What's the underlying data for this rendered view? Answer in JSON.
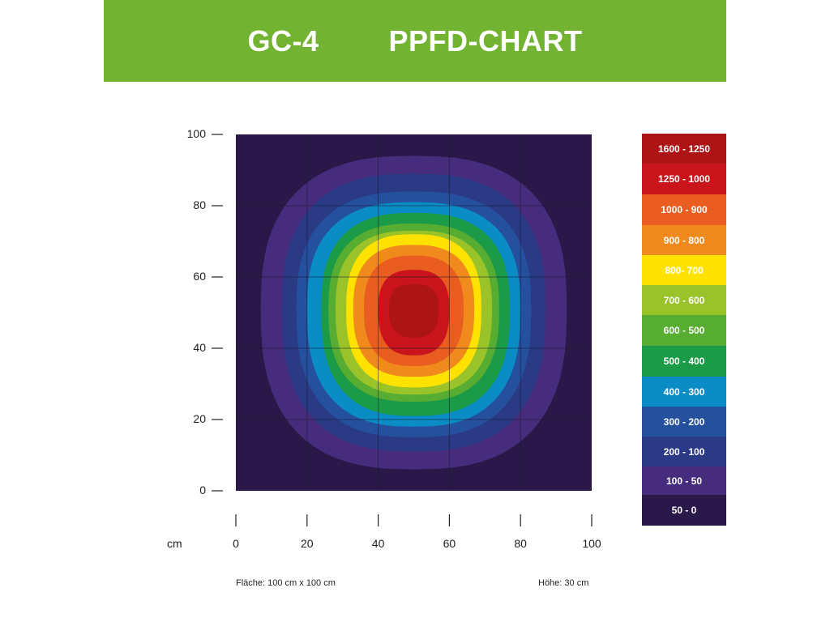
{
  "header": {
    "model": "GC-4",
    "title": "PPFD-CHART",
    "background": "#72b432"
  },
  "chart_data": {
    "type": "heatmap",
    "title": "PPFD-CHART",
    "xlabel": "cm",
    "ylabel": "",
    "xlim": [
      0,
      100
    ],
    "ylim": [
      0,
      100
    ],
    "x_ticks": [
      0,
      20,
      40,
      60,
      80,
      100
    ],
    "y_ticks": [
      0,
      20,
      40,
      60,
      80,
      100
    ],
    "grid": true,
    "center": [
      50,
      51
    ],
    "contours": [
      {
        "range": "100 - 50",
        "color": "#472c7d",
        "extent": {
          "left": 7,
          "right": 93,
          "top": 94,
          "bottom": 6
        }
      },
      {
        "range": "200 - 100",
        "color": "#2a3a85",
        "extent": {
          "left": 13,
          "right": 87,
          "top": 89,
          "bottom": 11
        }
      },
      {
        "range": "300 - 200",
        "color": "#24509e",
        "extent": {
          "left": 17,
          "right": 83,
          "top": 84,
          "bottom": 15
        }
      },
      {
        "range": "400 - 300",
        "color": "#0a8dc4",
        "extent": {
          "left": 20,
          "right": 80,
          "top": 81,
          "bottom": 18
        }
      },
      {
        "range": "500 - 400",
        "color": "#1b9a48",
        "extent": {
          "left": 24,
          "right": 77,
          "top": 78,
          "bottom": 21
        }
      },
      {
        "range": "600 - 500",
        "color": "#56ad32",
        "extent": {
          "left": 26,
          "right": 74,
          "top": 75,
          "bottom": 25
        }
      },
      {
        "range": "700 - 600",
        "color": "#9ac329",
        "extent": {
          "left": 28,
          "right": 72,
          "top": 73,
          "bottom": 27
        }
      },
      {
        "range": "800- 700",
        "color": "#ffe200",
        "extent": {
          "left": 31,
          "right": 69,
          "top": 72,
          "bottom": 29
        }
      },
      {
        "range": "900 - 800",
        "color": "#f08a1c",
        "extent": {
          "left": 33,
          "right": 67,
          "top": 69,
          "bottom": 32
        }
      },
      {
        "range": "1000 - 900",
        "color": "#e95d20",
        "extent": {
          "left": 36,
          "right": 64,
          "top": 66,
          "bottom": 35
        }
      },
      {
        "range": "1250 - 1000",
        "color": "#c9141c",
        "extent": {
          "left": 40,
          "right": 60,
          "top": 62,
          "bottom": 38
        }
      },
      {
        "range": "1600 - 1250",
        "color": "#ad1416",
        "extent": {
          "left": 43,
          "right": 57,
          "top": 58,
          "bottom": 43
        }
      }
    ],
    "background_range": "50 - 0",
    "background_color": "#2a1849",
    "legend": [
      {
        "label": "1600 - 1250",
        "color": "#ad1416"
      },
      {
        "label": "1250 - 1000",
        "color": "#c9141c"
      },
      {
        "label": "1000 - 900",
        "color": "#e95d20"
      },
      {
        "label": "900 - 800",
        "color": "#f08a1c"
      },
      {
        "label": "800- 700",
        "color": "#ffe200"
      },
      {
        "label": "700 - 600",
        "color": "#9ac329"
      },
      {
        "label": "600 - 500",
        "color": "#56ad32"
      },
      {
        "label": "500 - 400",
        "color": "#1b9a48"
      },
      {
        "label": "400 - 300",
        "color": "#0a8dc4"
      },
      {
        "label": "300 - 200",
        "color": "#24509e"
      },
      {
        "label": "200 - 100",
        "color": "#2a3a85"
      },
      {
        "label": "100 - 50",
        "color": "#472c7d"
      },
      {
        "label": "50 - 0",
        "color": "#2a1849"
      }
    ],
    "legend_placement": "right"
  },
  "footer": {
    "area": "Fläche: 100 cm x 100 cm",
    "height": "Höhe: 30 cm"
  }
}
